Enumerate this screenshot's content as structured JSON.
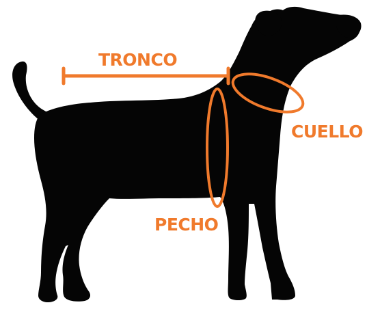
{
  "colors": {
    "accent": "#F07A2C",
    "silhouette": "#050505",
    "background": "#FFFFFF"
  },
  "labels": {
    "tronco": "TRONCO",
    "cuello": "CUELLO",
    "pecho": "PECHO"
  }
}
